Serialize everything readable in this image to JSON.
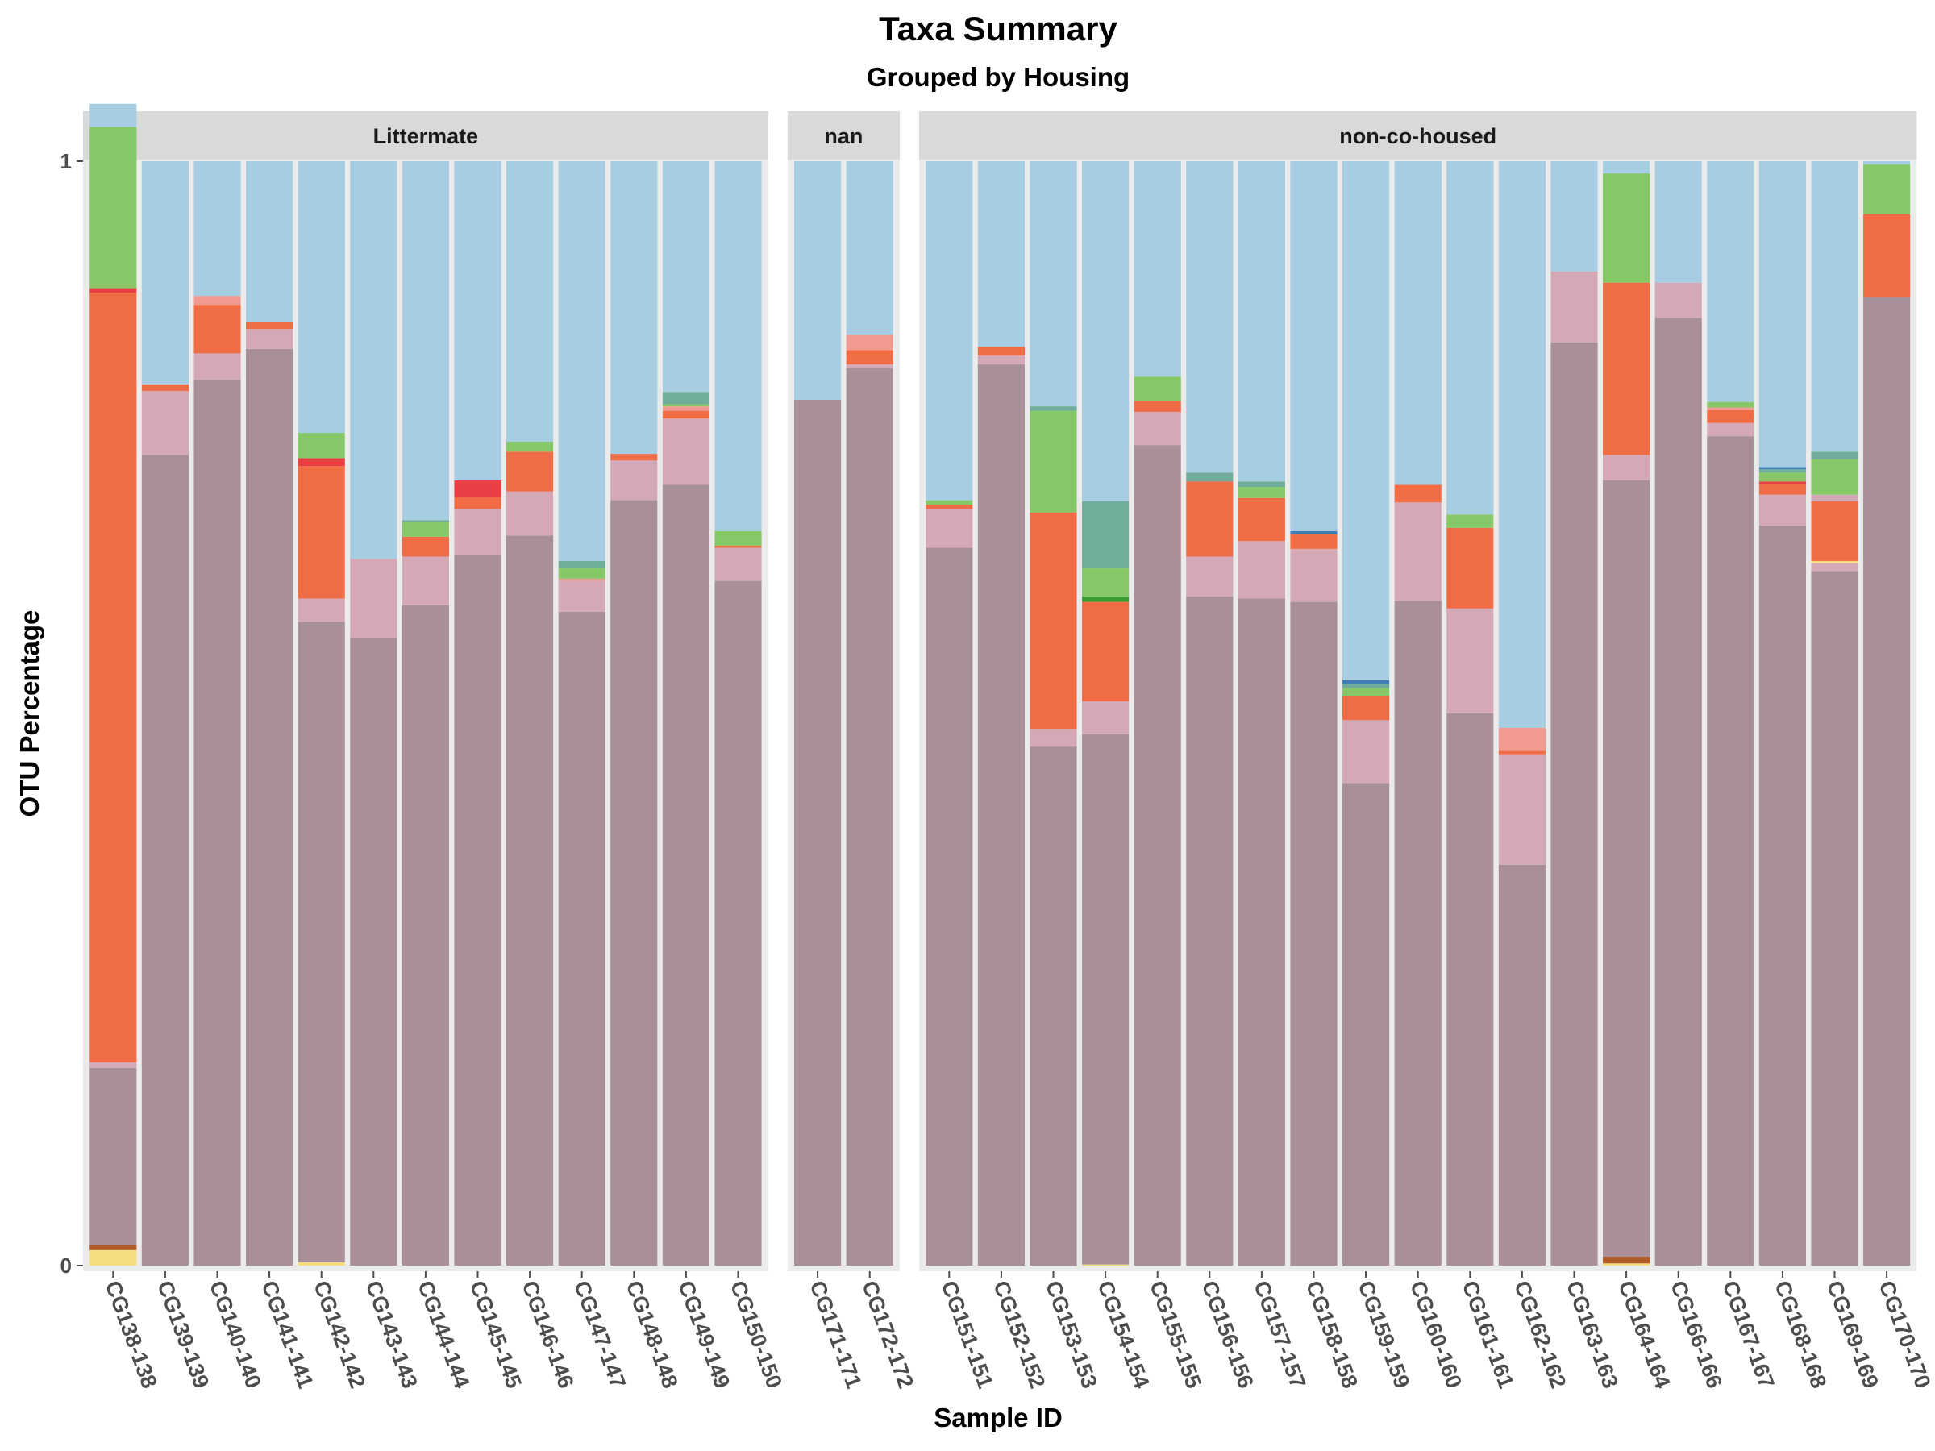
{
  "chart_data": {
    "type": "bar",
    "title": "Taxa Summary",
    "subtitle": "Grouped by Housing",
    "xlabel": "Sample ID",
    "ylabel": "OTU Percentage",
    "ylim": [
      0,
      1
    ],
    "y_ticks": [
      "0",
      "1"
    ],
    "stacked": true,
    "facet_layout": "columns",
    "grid": false,
    "colors": {
      "mauve": "#a99098",
      "pink": "#d4a9b5",
      "salmon": "#f09a90",
      "orange": "#f06c45",
      "red": "#e84045",
      "green": "#86c868",
      "teal": "#70ad9a",
      "darkgreen": "#3a9a30",
      "blue": "#3f7fb5",
      "brown": "#b05a28",
      "yellow": "#f5dc80",
      "lightblue": "#a6cde1"
    },
    "facets": [
      {
        "label": "Littermate",
        "samples": [
          {
            "id": "CG138-138",
            "stack": [
              [
                "yellow",
                0.014
              ],
              [
                "brown",
                0.005
              ],
              [
                "mauve",
                0.16
              ],
              [
                "pink",
                0.005
              ],
              [
                "orange",
                0.697
              ],
              [
                "red",
                0.004
              ],
              [
                "green",
                0.146
              ],
              [
                "lightblue",
                0.021
              ]
            ]
          },
          {
            "id": "CG139-139",
            "stack": [
              [
                "mauve",
                0.734
              ],
              [
                "pink",
                0.058
              ],
              [
                "orange",
                0.006
              ],
              [
                "lightblue",
                0.202
              ]
            ]
          },
          {
            "id": "CG140-140",
            "stack": [
              [
                "mauve",
                0.802
              ],
              [
                "pink",
                0.024
              ],
              [
                "orange",
                0.044
              ],
              [
                "salmon",
                0.008
              ],
              [
                "lightblue",
                0.122
              ]
            ]
          },
          {
            "id": "CG141-141",
            "stack": [
              [
                "mauve",
                0.83
              ],
              [
                "pink",
                0.018
              ],
              [
                "orange",
                0.006
              ],
              [
                "lightblue",
                0.146
              ]
            ]
          },
          {
            "id": "CG142-142",
            "stack": [
              [
                "yellow",
                0.003
              ],
              [
                "mauve",
                0.58
              ],
              [
                "pink",
                0.021
              ],
              [
                "orange",
                0.12
              ],
              [
                "red",
                0.007
              ],
              [
                "green",
                0.023
              ],
              [
                "lightblue",
                0.246
              ]
            ]
          },
          {
            "id": "CG143-143",
            "stack": [
              [
                "mauve",
                0.568
              ],
              [
                "pink",
                0.072
              ],
              [
                "lightblue",
                0.36
              ]
            ]
          },
          {
            "id": "CG144-144",
            "stack": [
              [
                "mauve",
                0.598
              ],
              [
                "pink",
                0.044
              ],
              [
                "orange",
                0.018
              ],
              [
                "green",
                0.013
              ],
              [
                "teal",
                0.002
              ],
              [
                "lightblue",
                0.325
              ]
            ]
          },
          {
            "id": "CG145-145",
            "stack": [
              [
                "mauve",
                0.644
              ],
              [
                "pink",
                0.041
              ],
              [
                "orange",
                0.011
              ],
              [
                "red",
                0.015
              ],
              [
                "lightblue",
                0.289
              ]
            ]
          },
          {
            "id": "CG146-146",
            "stack": [
              [
                "mauve",
                0.661
              ],
              [
                "pink",
                0.04
              ],
              [
                "orange",
                0.036
              ],
              [
                "green",
                0.009
              ],
              [
                "lightblue",
                0.254
              ]
            ]
          },
          {
            "id": "CG147-147",
            "stack": [
              [
                "mauve",
                0.592
              ],
              [
                "pink",
                0.028
              ],
              [
                "salmon",
                0.002
              ],
              [
                "green",
                0.01
              ],
              [
                "teal",
                0.006
              ],
              [
                "lightblue",
                0.362
              ]
            ]
          },
          {
            "id": "CG148-148",
            "stack": [
              [
                "mauve",
                0.693
              ],
              [
                "pink",
                0.036
              ],
              [
                "orange",
                0.006
              ],
              [
                "lightblue",
                0.265
              ]
            ]
          },
          {
            "id": "CG149-149",
            "stack": [
              [
                "mauve",
                0.707
              ],
              [
                "pink",
                0.06
              ],
              [
                "orange",
                0.007
              ],
              [
                "salmon",
                0.004
              ],
              [
                "green",
                0.002
              ],
              [
                "teal",
                0.011
              ],
              [
                "lightblue",
                0.209
              ]
            ]
          },
          {
            "id": "CG150-150",
            "stack": [
              [
                "mauve",
                0.62
              ],
              [
                "pink",
                0.03
              ],
              [
                "orange",
                0.002
              ],
              [
                "green",
                0.013
              ],
              [
                "lightblue",
                0.335
              ]
            ]
          }
        ]
      },
      {
        "label": "nan",
        "samples": [
          {
            "id": "CG171-171",
            "stack": [
              [
                "mauve",
                0.784
              ],
              [
                "lightblue",
                0.216
              ]
            ]
          },
          {
            "id": "CG172-172",
            "stack": [
              [
                "mauve",
                0.813
              ],
              [
                "pink",
                0.003
              ],
              [
                "orange",
                0.013
              ],
              [
                "salmon",
                0.014
              ],
              [
                "lightblue",
                0.157
              ]
            ]
          }
        ]
      },
      {
        "label": "non-co-housed",
        "samples": [
          {
            "id": "CG151-151",
            "stack": [
              [
                "mauve",
                0.65
              ],
              [
                "pink",
                0.035
              ],
              [
                "orange",
                0.004
              ],
              [
                "green",
                0.004
              ],
              [
                "lightblue",
                0.307
              ]
            ]
          },
          {
            "id": "CG152-152",
            "stack": [
              [
                "mauve",
                0.816
              ],
              [
                "pink",
                0.008
              ],
              [
                "orange",
                0.008
              ],
              [
                "lightblue",
                0.168
              ]
            ]
          },
          {
            "id": "CG153-153",
            "stack": [
              [
                "mauve",
                0.47
              ],
              [
                "pink",
                0.016
              ],
              [
                "orange",
                0.196
              ],
              [
                "green",
                0.092
              ],
              [
                "teal",
                0.004
              ],
              [
                "lightblue",
                0.222
              ]
            ]
          },
          {
            "id": "CG154-154",
            "stack": [
              [
                "yellow",
                0.001
              ],
              [
                "mauve",
                0.48
              ],
              [
                "pink",
                0.03
              ],
              [
                "orange",
                0.09
              ],
              [
                "darkgreen",
                0.005
              ],
              [
                "green",
                0.026
              ],
              [
                "teal",
                0.06
              ],
              [
                "lightblue",
                0.308
              ]
            ]
          },
          {
            "id": "CG155-155",
            "stack": [
              [
                "mauve",
                0.743
              ],
              [
                "pink",
                0.03
              ],
              [
                "orange",
                0.01
              ],
              [
                "green",
                0.022
              ],
              [
                "lightblue",
                0.195
              ]
            ]
          },
          {
            "id": "CG156-156",
            "stack": [
              [
                "mauve",
                0.606
              ],
              [
                "pink",
                0.036
              ],
              [
                "orange",
                0.068
              ],
              [
                "teal",
                0.008
              ],
              [
                "lightblue",
                0.282
              ]
            ]
          },
          {
            "id": "CG157-157",
            "stack": [
              [
                "mauve",
                0.604
              ],
              [
                "pink",
                0.052
              ],
              [
                "orange",
                0.039
              ],
              [
                "green",
                0.01
              ],
              [
                "teal",
                0.005
              ],
              [
                "lightblue",
                0.29
              ]
            ]
          },
          {
            "id": "CG158-158",
            "stack": [
              [
                "mauve",
                0.601
              ],
              [
                "pink",
                0.048
              ],
              [
                "orange",
                0.013
              ],
              [
                "blue",
                0.003
              ],
              [
                "lightblue",
                0.335
              ]
            ]
          },
          {
            "id": "CG159-159",
            "stack": [
              [
                "mauve",
                0.437
              ],
              [
                "pink",
                0.057
              ],
              [
                "orange",
                0.022
              ],
              [
                "green",
                0.007
              ],
              [
                "teal",
                0.004
              ],
              [
                "blue",
                0.003
              ],
              [
                "lightblue",
                0.47
              ]
            ]
          },
          {
            "id": "CG160-160",
            "stack": [
              [
                "mauve",
                0.602
              ],
              [
                "pink",
                0.089
              ],
              [
                "orange",
                0.016
              ],
              [
                "lightblue",
                0.293
              ]
            ]
          },
          {
            "id": "CG161-161",
            "stack": [
              [
                "mauve",
                0.5
              ],
              [
                "pink",
                0.095
              ],
              [
                "orange",
                0.073
              ],
              [
                "green",
                0.012
              ],
              [
                "lightblue",
                0.32
              ]
            ]
          },
          {
            "id": "CG162-162",
            "stack": [
              [
                "mauve",
                0.363
              ],
              [
                "pink",
                0.1
              ],
              [
                "orange",
                0.003
              ],
              [
                "salmon",
                0.021
              ],
              [
                "lightblue",
                0.513
              ]
            ]
          },
          {
            "id": "CG163-163",
            "stack": [
              [
                "mauve",
                0.836
              ],
              [
                "pink",
                0.064
              ],
              [
                "lightblue",
                0.1
              ]
            ]
          },
          {
            "id": "CG164-164",
            "stack": [
              [
                "yellow",
                0.002
              ],
              [
                "brown",
                0.006
              ],
              [
                "mauve",
                0.703
              ],
              [
                "pink",
                0.023
              ],
              [
                "orange",
                0.156
              ],
              [
                "green",
                0.099
              ],
              [
                "lightblue",
                0.011
              ]
            ]
          },
          {
            "id": "CG166-166",
            "stack": [
              [
                "mauve",
                0.858
              ],
              [
                "pink",
                0.032
              ],
              [
                "lightblue",
                0.11
              ]
            ]
          },
          {
            "id": "CG167-167",
            "stack": [
              [
                "mauve",
                0.751
              ],
              [
                "pink",
                0.012
              ],
              [
                "orange",
                0.012
              ],
              [
                "salmon",
                0.002
              ],
              [
                "green",
                0.005
              ],
              [
                "lightblue",
                0.218
              ]
            ]
          },
          {
            "id": "CG168-168",
            "stack": [
              [
                "mauve",
                0.67
              ],
              [
                "pink",
                0.028
              ],
              [
                "orange",
                0.01
              ],
              [
                "red",
                0.002
              ],
              [
                "green",
                0.008
              ],
              [
                "teal",
                0.003
              ],
              [
                "blue",
                0.002
              ],
              [
                "lightblue",
                0.277
              ]
            ]
          },
          {
            "id": "CG169-169",
            "stack": [
              [
                "mauve",
                0.629
              ],
              [
                "pink",
                0.007
              ],
              [
                "yellow",
                0.002
              ],
              [
                "orange",
                0.054
              ],
              [
                "pink",
                0.006
              ],
              [
                "green",
                0.032
              ],
              [
                "teal",
                0.007
              ],
              [
                "lightblue",
                0.263
              ]
            ]
          },
          {
            "id": "CG170-170",
            "stack": [
              [
                "mauve",
                0.877
              ],
              [
                "orange",
                0.075
              ],
              [
                "green",
                0.045
              ],
              [
                "lightblue",
                0.003
              ]
            ]
          }
        ]
      }
    ]
  }
}
